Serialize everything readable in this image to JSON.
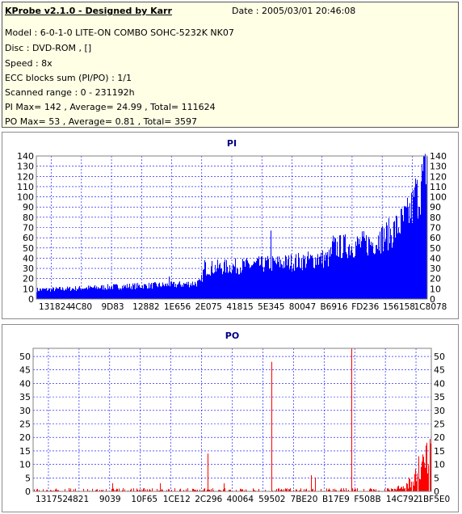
{
  "info": {
    "title": "KProbe v2.1.0 - Designed by Karr",
    "date": "Date : 2005/03/01 20:46:08",
    "model": "Model : 6-0-1-0 LITE-ON COMBO SOHC-5232K NK07",
    "disc": "Disc : DVD-ROM ,  []",
    "speed": "Speed : 8x",
    "ecc": "ECC blocks sum (PI/PO) : 1/1",
    "range": "Scanned range : 0 - 231192h",
    "pi_stats": "PI Max= 142 , Average= 24.99 , Total= 111624",
    "po_stats": "PO Max= 53 , Average= 0.81 , Total= 3597"
  },
  "colors": {
    "pi": "#0000ff",
    "po": "#ff0000",
    "grid": "#0000ff",
    "title": "#000080",
    "info_bg": "#ffffe6"
  },
  "chart_data": [
    {
      "type": "bar",
      "title": "PI",
      "ylim": [
        0,
        140
      ],
      "yticks": [
        0,
        10,
        20,
        30,
        40,
        50,
        60,
        70,
        80,
        90,
        100,
        110,
        120,
        130,
        140
      ],
      "xticks": [
        "131824",
        "4C80",
        "9D83",
        "12882",
        "1E656",
        "2E075",
        "41815",
        "5E345",
        "80047",
        "B6916",
        "FD236",
        "156158",
        "1C8078"
      ],
      "grid": true,
      "profile": [
        [
          0,
          9
        ],
        [
          0.08,
          10
        ],
        [
          0.2,
          12
        ],
        [
          0.36,
          14
        ],
        [
          0.42,
          16
        ],
        [
          0.43,
          30
        ],
        [
          0.55,
          33
        ],
        [
          0.65,
          36
        ],
        [
          0.75,
          40
        ],
        [
          0.76,
          50
        ],
        [
          0.86,
          55
        ],
        [
          0.91,
          65
        ],
        [
          0.95,
          80
        ],
        [
          0.97,
          95
        ],
        [
          0.985,
          110
        ],
        [
          1.0,
          135
        ]
      ],
      "spikes": [
        [
          0.6,
          67
        ],
        [
          0.34,
          22
        ],
        [
          0.43,
          38
        ],
        [
          0.72,
          44
        ],
        [
          0.76,
          62
        ],
        [
          0.88,
          66
        ],
        [
          0.97,
          118
        ],
        [
          0.995,
          142
        ]
      ]
    },
    {
      "type": "bar",
      "title": "PO",
      "ylim": [
        0,
        53
      ],
      "yticks": [
        0,
        5,
        10,
        15,
        20,
        25,
        30,
        35,
        40,
        45,
        50
      ],
      "xticks": [
        "131752",
        "4821",
        "9039",
        "10F65",
        "1CE12",
        "2C296",
        "40064",
        "59502",
        "7BE20",
        "B17E9",
        "F508B",
        "14C792",
        "1BF5E0"
      ],
      "grid": true,
      "profile": [
        [
          0,
          0.6
        ],
        [
          0.9,
          0.6
        ],
        [
          0.93,
          1.5
        ],
        [
          0.96,
          4
        ],
        [
          0.98,
          7
        ],
        [
          1.0,
          11
        ]
      ],
      "spikes": [
        [
          0.6,
          48
        ],
        [
          0.8,
          53
        ],
        [
          0.44,
          14
        ],
        [
          0.7,
          6
        ],
        [
          0.71,
          5
        ],
        [
          0.2,
          3
        ],
        [
          0.32,
          3
        ],
        [
          0.48,
          3
        ],
        [
          0.99,
          18
        ],
        [
          0.97,
          13
        ]
      ]
    }
  ]
}
